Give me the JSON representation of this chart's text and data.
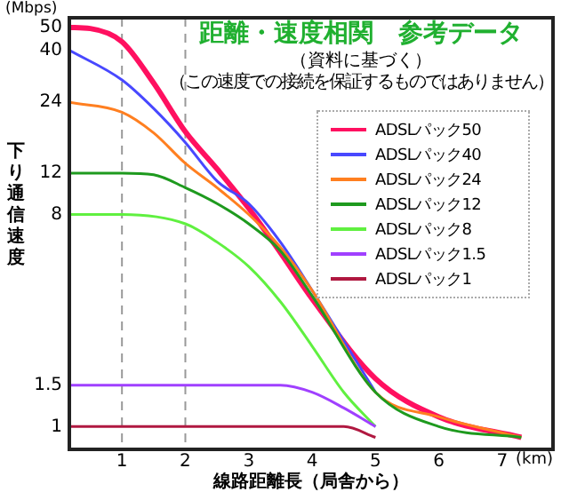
{
  "chart_data": {
    "type": "line",
    "title": "距離・速度相関　参考データ",
    "subtitle": "（資料に基づく）",
    "xlabel": "線路距離長（局舎から）",
    "ylabel": "下り通信速度",
    "annotations": [
      "(Mbps)",
      "(km)",
      "（この速度での接続を保証するものではありません）"
    ],
    "xlim": [
      0.17,
      7.8
    ],
    "xticks": [
      1,
      2,
      3,
      4,
      5,
      6,
      7
    ],
    "ylim": [
      0.8,
      55
    ],
    "yticks": [
      1,
      1.5,
      8,
      12,
      24,
      40,
      50
    ],
    "legend": "top right",
    "log": true,
    "marker": "none",
    "line_style": "solid",
    "ref_lines": [
      {
        "axis": "x",
        "value": 1,
        "color": "#999999",
        "line_style": "dashed"
      },
      {
        "axis": "x",
        "value": 2,
        "color": "#999999",
        "line_style": "dashed"
      }
    ],
    "series": [
      {
        "name": "ADSLパック50",
        "color": "#ff1060",
        "x": [
          0.17,
          0.5,
          1,
          1.5,
          2,
          2.5,
          3,
          3.5,
          4,
          5,
          6,
          7.3
        ],
        "values": [
          50,
          49.5,
          43.5,
          29,
          18,
          12.5,
          8.5,
          5.5,
          3.5,
          1.6,
          1.1,
          0.9
        ]
      },
      {
        "name": "ADSLパック40",
        "color": "#4848ff",
        "x": [
          0.17,
          1,
          1.5,
          2,
          2.5,
          3,
          3.5,
          4,
          5
        ],
        "values": [
          40,
          29.9,
          22.6,
          16.2,
          11.1,
          8.9,
          6.1,
          3.8,
          1.4
        ]
      },
      {
        "name": "ADSLパック24",
        "color": "#ff7f20",
        "x": [
          0.17,
          1,
          1.5,
          2,
          2.5,
          3,
          3.5,
          4,
          5,
          6,
          7.3
        ],
        "values": [
          24,
          21.8,
          17.8,
          13.2,
          10.4,
          8,
          5.8,
          3.8,
          1.4,
          1.1,
          0.9
        ]
      },
      {
        "name": "ADSLパック12",
        "color": "#1e9a1e",
        "x": [
          0.17,
          1,
          1.5,
          2,
          2.5,
          3,
          3.5,
          4,
          5,
          6,
          7.3
        ],
        "values": [
          12,
          12,
          11.8,
          10.4,
          8.9,
          7.3,
          5.6,
          3.6,
          1.4,
          1,
          0.9
        ]
      },
      {
        "name": "ADSLパック8",
        "color": "#60f040",
        "x": [
          0.17,
          1,
          2,
          2.5,
          3,
          3.5,
          4,
          4.5,
          5
        ],
        "values": [
          8,
          8,
          7.3,
          6.1,
          4.8,
          3.4,
          2.2,
          1.4,
          1
        ]
      },
      {
        "name": "ADSLパック1.5",
        "color": "#a040ff",
        "x": [
          0.17,
          3.5,
          4,
          4.5,
          5
        ],
        "values": [
          1.5,
          1.5,
          1.4,
          1.2,
          1
        ]
      },
      {
        "name": "ADSLパック1",
        "color": "#b01840",
        "x": [
          0.17,
          4.5,
          5
        ],
        "values": [
          1,
          1,
          0.9
        ]
      }
    ]
  }
}
